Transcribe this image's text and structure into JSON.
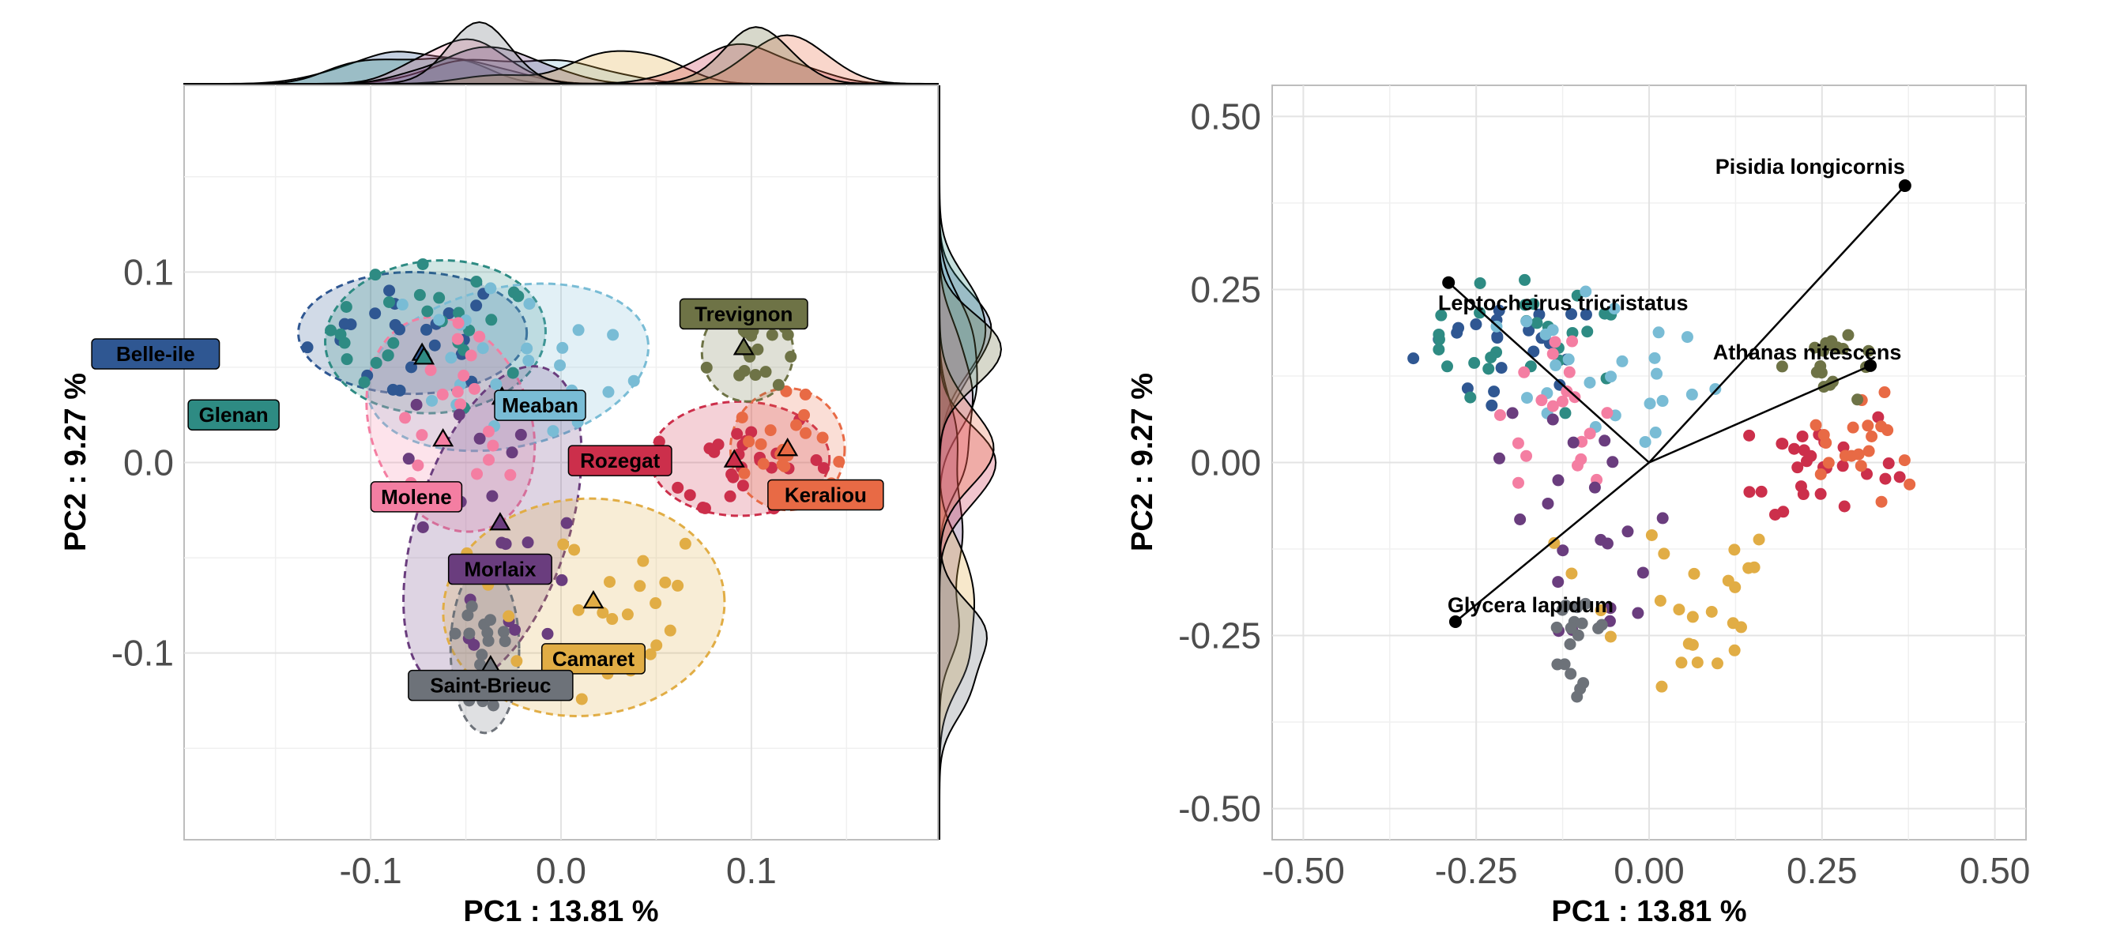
{
  "chart_data": [
    {
      "type": "scatter",
      "panel": "left",
      "xlabel": "PC1 :  13.81 %",
      "ylabel": "PC2 :  9.27 %",
      "xlim": [
        -0.198,
        0.198
      ],
      "ylim": [
        -0.198,
        0.198
      ],
      "xticks": [
        -0.1,
        0.0,
        0.1
      ],
      "xtick_labels": [
        "-0.1",
        "0.0",
        "0.1"
      ],
      "yticks": [
        -0.1,
        0.0,
        0.1
      ],
      "ytick_labels": [
        "-0.1",
        "0.0",
        "0.1"
      ],
      "grid": true,
      "marginal_density": "top and right",
      "ellipse_style": "dashed, semi-transparent fill",
      "centroid_marker": "triangle",
      "sites": [
        {
          "name": "Belle-ile",
          "color": "#2f5792",
          "centroid": [
            -0.073,
            0.057
          ],
          "n": 22,
          "ellipse": {
            "cx": -0.078,
            "cy": 0.068,
            "rx": 0.06,
            "ry": 0.032,
            "angle": 0
          }
        },
        {
          "name": "Glenan",
          "color": "#2e8b83",
          "centroid": [
            -0.072,
            0.055
          ],
          "n": 28,
          "ellipse": {
            "cx": -0.066,
            "cy": 0.066,
            "rx": 0.058,
            "ry": 0.04,
            "angle": -5
          }
        },
        {
          "name": "Meaban",
          "color": "#79bcd5",
          "centroid": [
            -0.031,
            0.034
          ],
          "n": 26,
          "ellipse": {
            "cx": -0.028,
            "cy": 0.05,
            "rx": 0.075,
            "ry": 0.042,
            "angle": -12
          }
        },
        {
          "name": "Molene",
          "color": "#f47ea2",
          "centroid": [
            -0.062,
            0.012
          ],
          "n": 20,
          "ellipse": {
            "cx": -0.058,
            "cy": 0.02,
            "rx": 0.042,
            "ry": 0.058,
            "angle": -20
          }
        },
        {
          "name": "Morlaix",
          "color": "#6a3d7e",
          "centroid": [
            -0.032,
            -0.032
          ],
          "n": 22,
          "ellipse": {
            "cx": -0.036,
            "cy": -0.034,
            "rx": 0.04,
            "ry": 0.088,
            "angle": 18
          }
        },
        {
          "name": "Camaret",
          "color": "#e1ad45",
          "centroid": [
            0.017,
            -0.073
          ],
          "n": 26,
          "ellipse": {
            "cx": 0.012,
            "cy": -0.076,
            "rx": 0.074,
            "ry": 0.057,
            "angle": -5
          }
        },
        {
          "name": "Saint-Brieuc",
          "color": "#6d7279",
          "centroid": [
            -0.037,
            -0.107
          ],
          "n": 18,
          "ellipse": {
            "cx": -0.04,
            "cy": -0.098,
            "rx": 0.018,
            "ry": 0.044,
            "angle": 0
          }
        },
        {
          "name": "Rozegat",
          "color": "#cc2f4b",
          "centroid": [
            0.091,
            0.001
          ],
          "n": 28,
          "ellipse": {
            "cx": 0.094,
            "cy": 0.002,
            "rx": 0.047,
            "ry": 0.03,
            "angle": 0
          }
        },
        {
          "name": "Keraliou",
          "color": "#e86a45",
          "centroid": [
            0.119,
            0.007
          ],
          "n": 20,
          "ellipse": {
            "cx": 0.119,
            "cy": 0.007,
            "rx": 0.03,
            "ry": 0.032,
            "angle": 0
          }
        },
        {
          "name": "Trevignon",
          "color": "#6e7346",
          "centroid": [
            0.096,
            0.06
          ],
          "n": 18,
          "ellipse": {
            "cx": 0.098,
            "cy": 0.058,
            "rx": 0.024,
            "ry": 0.026,
            "angle": 0
          }
        }
      ]
    },
    {
      "type": "scatter",
      "panel": "right",
      "xlabel": "PC1 :  13.81 %",
      "ylabel": "PC2 :  9.27 %",
      "xlim": [
        -0.545,
        0.545
      ],
      "ylim": [
        -0.545,
        0.545
      ],
      "xticks": [
        -0.5,
        -0.25,
        0.0,
        0.25,
        0.5
      ],
      "xtick_labels": [
        "-0.50",
        "-0.25",
        "0.00",
        "0.25",
        "0.50"
      ],
      "yticks": [
        -0.5,
        -0.25,
        0.0,
        0.25,
        0.5
      ],
      "ytick_labels": [
        "-0.50",
        "-0.25",
        "0.00",
        "0.25",
        "0.50"
      ],
      "grid": true,
      "loadings": [
        {
          "name": "Pisidia longicornis",
          "x": 0.37,
          "y": 0.4
        },
        {
          "name": "Leptocheirus tricristatus",
          "x": -0.29,
          "y": 0.26
        },
        {
          "name": "Athanas nitescens",
          "x": 0.32,
          "y": 0.14
        },
        {
          "name": "Glycera lapidum",
          "x": -0.28,
          "y": -0.23
        }
      ]
    }
  ]
}
